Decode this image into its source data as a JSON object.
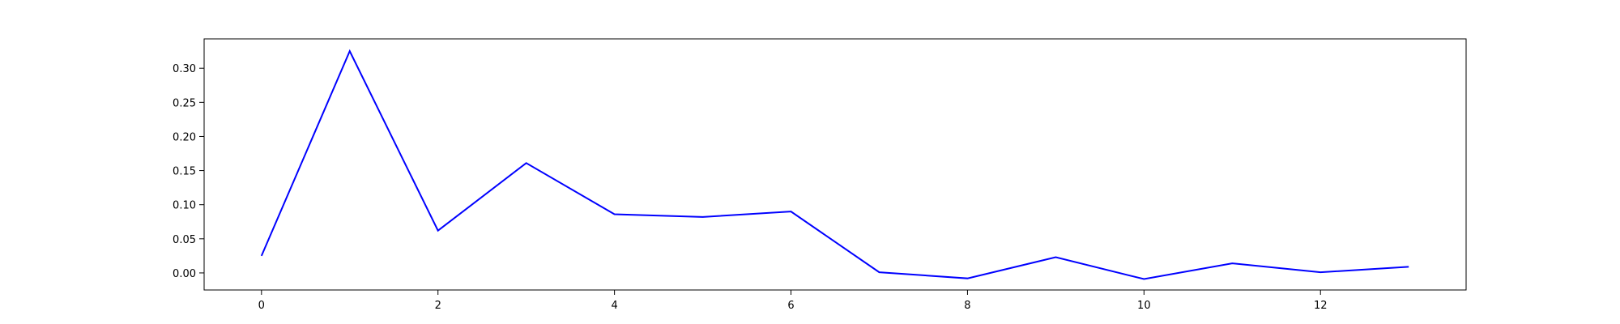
{
  "chart_data": {
    "type": "line",
    "title": "",
    "xlabel": "",
    "ylabel": "",
    "xlim": [
      -0.65,
      13.65
    ],
    "ylim": [
      -0.025,
      0.343
    ],
    "grid": false,
    "legend": "none",
    "x_ticks": [
      0,
      2,
      4,
      6,
      8,
      10,
      12
    ],
    "x_tick_labels": [
      "0",
      "2",
      "4",
      "6",
      "8",
      "10",
      "12"
    ],
    "y_ticks": [
      0.0,
      0.05,
      0.1,
      0.15,
      0.2,
      0.25,
      0.3
    ],
    "y_tick_labels": [
      "0.00",
      "0.05",
      "0.10",
      "0.15",
      "0.20",
      "0.25",
      "0.30"
    ],
    "series": [
      {
        "color": "#0000ff",
        "x": [
          0,
          1,
          2,
          3,
          4,
          5,
          6,
          7,
          8,
          9,
          10,
          11,
          12,
          13
        ],
        "y": [
          0.025,
          0.325,
          0.062,
          0.161,
          0.086,
          0.082,
          0.09,
          0.001,
          -0.008,
          0.023,
          -0.009,
          0.014,
          0.001,
          0.009
        ]
      }
    ]
  }
}
